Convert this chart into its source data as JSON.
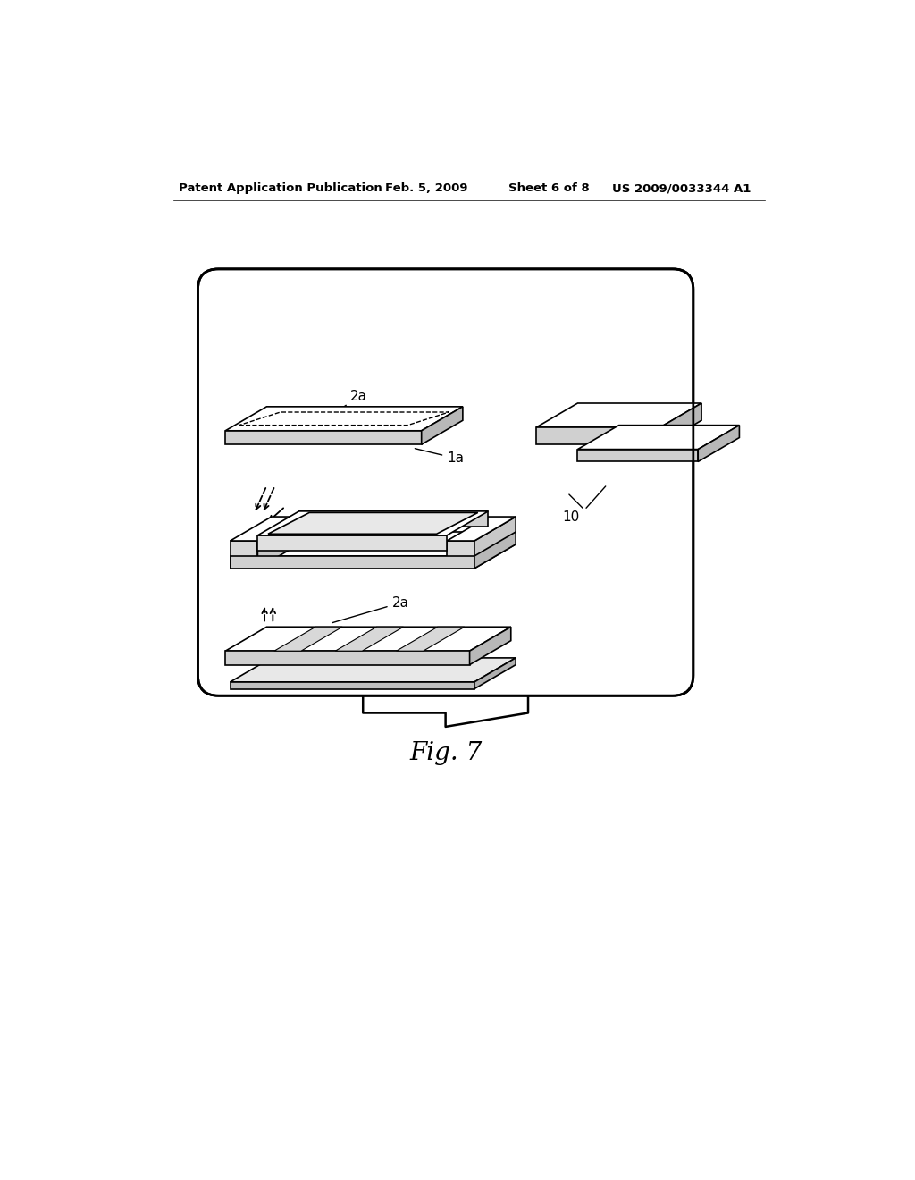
{
  "background_color": "#ffffff",
  "header_text": "Patent Application Publication",
  "header_date": "Feb. 5, 2009",
  "header_sheet": "Sheet 6 of 8",
  "header_patent": "US 2009/0033344 A1",
  "fig_label": "Fig. 7"
}
